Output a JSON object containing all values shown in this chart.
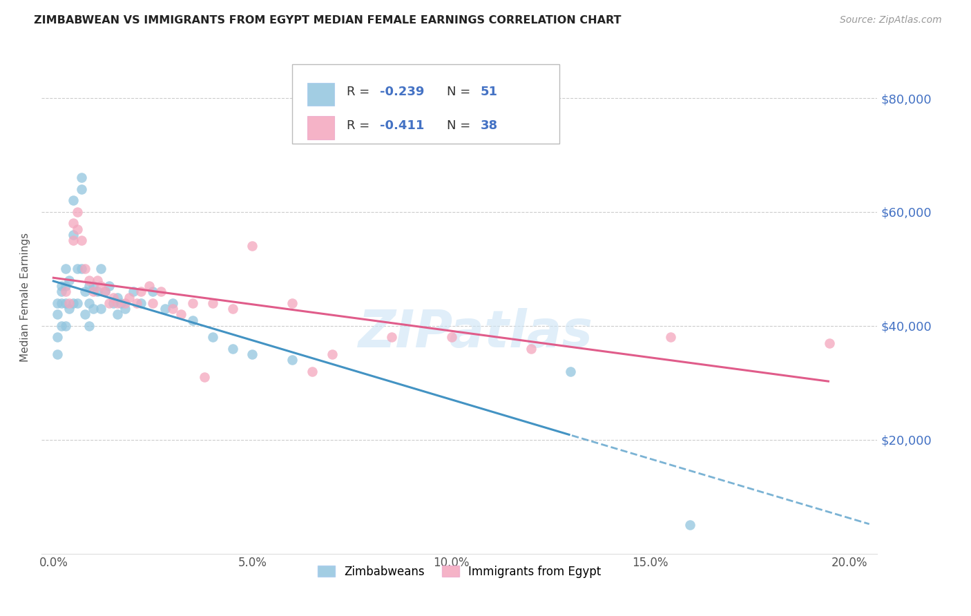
{
  "title": "ZIMBABWEAN VS IMMIGRANTS FROM EGYPT MEDIAN FEMALE EARNINGS CORRELATION CHART",
  "source": "Source: ZipAtlas.com",
  "ylabel": "Median Female Earnings",
  "xlabel_ticks": [
    "0.0%",
    "5.0%",
    "10.0%",
    "15.0%",
    "20.0%"
  ],
  "xlabel_vals": [
    0.0,
    0.05,
    0.1,
    0.15,
    0.2
  ],
  "ylabel_ticks": [
    20000,
    40000,
    60000,
    80000
  ],
  "ylabel_labels": [
    "$20,000",
    "$40,000",
    "$60,000",
    "$80,000"
  ],
  "zimbabwean_R": -0.239,
  "zimbabwean_N": 51,
  "egypt_R": -0.411,
  "egypt_N": 38,
  "blue_color": "#92c5de",
  "pink_color": "#f4a6bd",
  "blue_line_color": "#4393c3",
  "pink_line_color": "#e05c8a",
  "watermark": "ZIPatlas",
  "zimbabwean_x": [
    0.001,
    0.001,
    0.001,
    0.001,
    0.002,
    0.002,
    0.002,
    0.002,
    0.003,
    0.003,
    0.003,
    0.003,
    0.004,
    0.004,
    0.005,
    0.005,
    0.005,
    0.006,
    0.006,
    0.007,
    0.007,
    0.007,
    0.008,
    0.008,
    0.009,
    0.009,
    0.009,
    0.01,
    0.01,
    0.011,
    0.012,
    0.012,
    0.013,
    0.014,
    0.015,
    0.016,
    0.016,
    0.017,
    0.018,
    0.02,
    0.022,
    0.025,
    0.028,
    0.03,
    0.035,
    0.04,
    0.045,
    0.05,
    0.06,
    0.13,
    0.16
  ],
  "zimbabwean_y": [
    35000,
    38000,
    42000,
    44000,
    47000,
    46000,
    44000,
    40000,
    50000,
    47000,
    44000,
    40000,
    48000,
    43000,
    62000,
    56000,
    44000,
    50000,
    44000,
    66000,
    64000,
    50000,
    46000,
    42000,
    47000,
    44000,
    40000,
    47000,
    43000,
    46000,
    50000,
    43000,
    46000,
    47000,
    44000,
    45000,
    42000,
    44000,
    43000,
    46000,
    44000,
    46000,
    43000,
    44000,
    41000,
    38000,
    36000,
    35000,
    34000,
    32000,
    5000
  ],
  "egypt_x": [
    0.003,
    0.004,
    0.005,
    0.005,
    0.006,
    0.006,
    0.007,
    0.008,
    0.009,
    0.01,
    0.011,
    0.012,
    0.013,
    0.014,
    0.015,
    0.016,
    0.018,
    0.019,
    0.021,
    0.022,
    0.024,
    0.025,
    0.027,
    0.03,
    0.032,
    0.035,
    0.038,
    0.04,
    0.045,
    0.05,
    0.06,
    0.065,
    0.07,
    0.085,
    0.1,
    0.12,
    0.155,
    0.195
  ],
  "egypt_y": [
    46000,
    44000,
    58000,
    55000,
    60000,
    57000,
    55000,
    50000,
    48000,
    46000,
    48000,
    47000,
    46000,
    44000,
    45000,
    44000,
    44000,
    45000,
    44000,
    46000,
    47000,
    44000,
    46000,
    43000,
    42000,
    44000,
    31000,
    44000,
    43000,
    54000,
    44000,
    32000,
    35000,
    38000,
    38000,
    36000,
    38000,
    37000
  ]
}
